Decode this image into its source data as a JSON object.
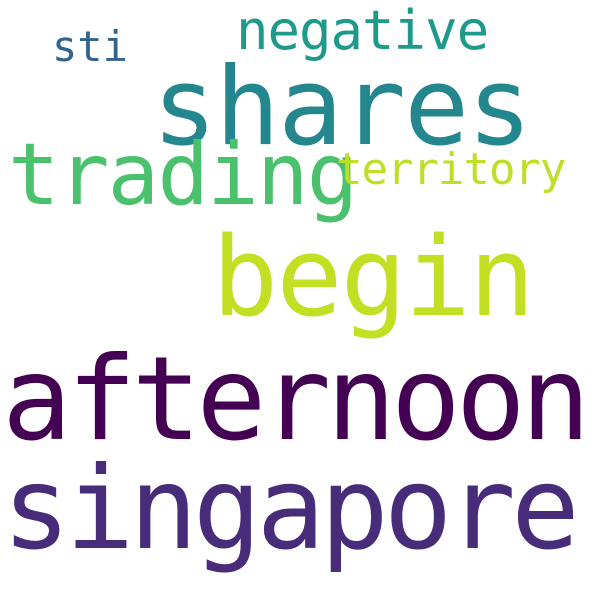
{
  "words": [
    {
      "text": "shares",
      "color": "#24878e"
    },
    {
      "text": "negative",
      "color": "#1f9a8a"
    },
    {
      "text": "sti",
      "color": "#32648e"
    },
    {
      "text": "trading",
      "color": "#4ac16d"
    },
    {
      "text": "territory",
      "color": "#bddf26"
    },
    {
      "text": "begin",
      "color": "#c2df23"
    },
    {
      "text": "afternoon",
      "color": "#440154"
    },
    {
      "text": "singapore",
      "color": "#472c7a"
    }
  ]
}
